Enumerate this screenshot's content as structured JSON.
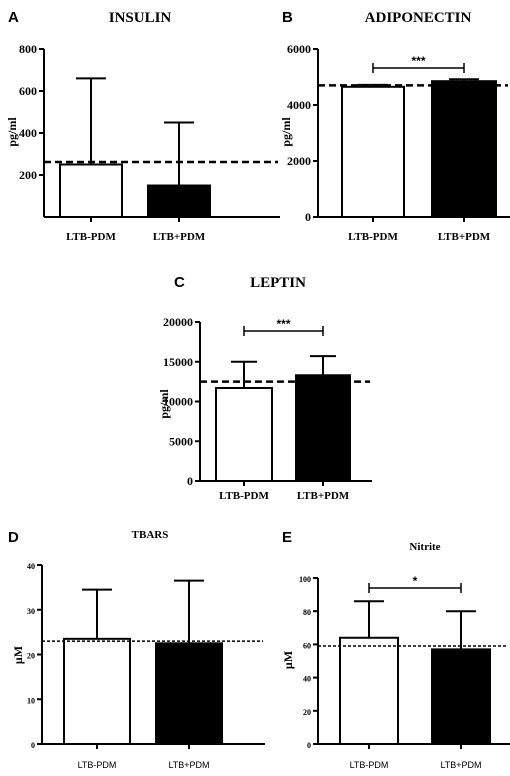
{
  "chart_data": [
    {
      "type": "bar",
      "panel": "A",
      "title": "INSULIN",
      "ylabel": "pg/ml",
      "categories": [
        "LTB-PDM",
        "LTB+PDM"
      ],
      "values": [
        250,
        150
      ],
      "error_upper": [
        660,
        450
      ],
      "bar_colors": [
        "#ffffff",
        "#000000"
      ],
      "ylim": [
        0,
        800
      ],
      "yticks": [
        200,
        400,
        600,
        800
      ],
      "reference_line": 262,
      "significance": ""
    },
    {
      "type": "bar",
      "panel": "B",
      "title": "ADIPONECTIN",
      "ylabel": "pg/ml",
      "categories": [
        "LTB-PDM",
        "LTB+PDM"
      ],
      "values": [
        4650,
        4850
      ],
      "error_upper": [
        4720,
        4920
      ],
      "bar_colors": [
        "#ffffff",
        "#000000"
      ],
      "ylim": [
        0,
        6000
      ],
      "yticks": [
        0,
        2000,
        4000,
        6000
      ],
      "reference_line": 4700,
      "significance": "***"
    },
    {
      "type": "bar",
      "panel": "C",
      "title": "LEPTIN",
      "ylabel": "pg/ml",
      "categories": [
        "LTB-PDM",
        "LTB+PDM"
      ],
      "values": [
        11700,
        13300
      ],
      "error_upper": [
        15000,
        15700
      ],
      "bar_colors": [
        "#ffffff",
        "#000000"
      ],
      "ylim": [
        0,
        20000
      ],
      "yticks": [
        0,
        5000,
        10000,
        15000,
        20000
      ],
      "reference_line": 12500,
      "significance": "***"
    },
    {
      "type": "bar",
      "panel": "D",
      "title": "TBARS",
      "ylabel": "μM",
      "categories": [
        "LTB-PDM",
        "LTB+PDM"
      ],
      "values": [
        23.5,
        22.5
      ],
      "error_upper": [
        34.5,
        36.5
      ],
      "bar_colors": [
        "#ffffff",
        "#000000"
      ],
      "ylim": [
        0,
        40
      ],
      "yticks": [
        0,
        10,
        20,
        30,
        40
      ],
      "reference_line": 23,
      "significance": ""
    },
    {
      "type": "bar",
      "panel": "E",
      "title": "Nitrite",
      "ylabel": "μM",
      "categories": [
        "LTB-PDM",
        "LTB+PDM"
      ],
      "values": [
        64,
        57
      ],
      "error_upper": [
        86,
        80
      ],
      "bar_colors": [
        "#ffffff",
        "#000000"
      ],
      "ylim": [
        0,
        100
      ],
      "yticks": [
        0,
        20,
        40,
        60,
        80,
        100
      ],
      "reference_line": 59,
      "significance": "*"
    }
  ]
}
